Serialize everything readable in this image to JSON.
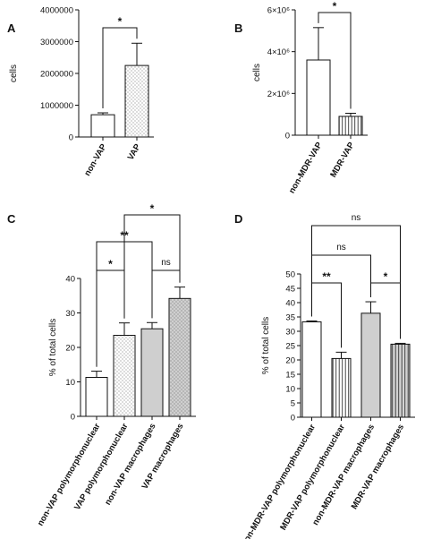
{
  "chart_data": [
    {
      "panel": "A",
      "type": "bar",
      "ylabel": "cells",
      "ylim": [
        0,
        4000000
      ],
      "ytick_values": [
        0,
        1000000,
        2000000,
        3000000,
        4000000
      ],
      "ytick_labels": [
        "0",
        "1000000",
        "2000000",
        "3000000",
        "4000000"
      ],
      "categories": [
        "non-VAP",
        "VAP"
      ],
      "values": [
        700000,
        2250000
      ],
      "errors": [
        60000,
        700000
      ],
      "fills": [
        "white",
        "dots-light"
      ],
      "comparisons": [
        {
          "from": 0,
          "to": 1,
          "label": "*",
          "level": 1
        }
      ]
    },
    {
      "panel": "B",
      "type": "bar",
      "ylabel": "cells",
      "ylim": [
        0,
        6000000
      ],
      "ytick_values": [
        0,
        2000000,
        4000000,
        6000000
      ],
      "ytick_labels": [
        "0",
        "2×10⁶",
        "4×10⁶",
        "6×10⁶"
      ],
      "categories": [
        "non-MDR-VAP",
        "MDR-VAP"
      ],
      "values": [
        3600000,
        900000
      ],
      "errors": [
        1550000,
        150000
      ],
      "fills": [
        "white",
        "vlines"
      ],
      "comparisons": [
        {
          "from": 0,
          "to": 1,
          "label": "*",
          "level": 1
        }
      ]
    },
    {
      "panel": "C",
      "type": "bar",
      "ylabel": "% of total cells",
      "ylim": [
        0,
        40
      ],
      "ytick_values": [
        0,
        10,
        20,
        30,
        40
      ],
      "ytick_labels": [
        "0",
        "10",
        "20",
        "30",
        "40"
      ],
      "categories": [
        "non-VAP polymorphonuclear",
        "VAP polymorphonuclear",
        "non-VAP macrophages",
        "VAP macrophages"
      ],
      "values": [
        11.3,
        23.5,
        25.4,
        34.2
      ],
      "errors": [
        1.8,
        3.6,
        1.8,
        3.3
      ],
      "fills": [
        "white",
        "dots-light",
        "gray",
        "dots-gray"
      ],
      "comparisons": [
        {
          "from": 0,
          "to": 1,
          "label": "*",
          "level": 1
        },
        {
          "from": 2,
          "to": 3,
          "label": "ns",
          "level": 1
        },
        {
          "from": 0,
          "to": 2,
          "label": "**",
          "level": 2
        },
        {
          "from": 1,
          "to": 3,
          "label": "*",
          "level": 3
        }
      ]
    },
    {
      "panel": "D",
      "type": "bar",
      "ylabel": "% of total cells",
      "ylim": [
        0,
        50
      ],
      "ytick_values": [
        0,
        5,
        10,
        15,
        20,
        25,
        30,
        35,
        40,
        45,
        50
      ],
      "ytick_labels": [
        "0",
        "5",
        "10",
        "15",
        "20",
        "25",
        "30",
        "35",
        "40",
        "45",
        "50"
      ],
      "categories": [
        "non-MDR-VAP polymorphonuclear",
        "MDR-VAP polymorphonuclear",
        "non-MDR-VAP macrophages",
        "MDR-VAP macrophages"
      ],
      "values": [
        33.3,
        20.5,
        36.3,
        25.5
      ],
      "errors": [
        0.3,
        2.2,
        4.0,
        0.3
      ],
      "fills": [
        "white",
        "vlines",
        "gray",
        "vlines-gray"
      ],
      "comparisons": [
        {
          "from": 0,
          "to": 1,
          "label": "**",
          "level": 1
        },
        {
          "from": 2,
          "to": 3,
          "label": "*",
          "level": 1
        },
        {
          "from": 0,
          "to": 2,
          "label": "ns",
          "level": 2
        },
        {
          "from": 0,
          "to": 3,
          "label": "ns",
          "level": 3
        }
      ]
    }
  ]
}
